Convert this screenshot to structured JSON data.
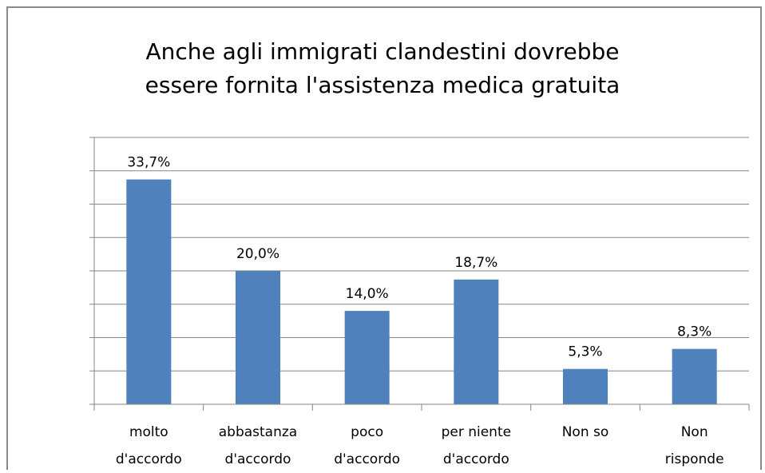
{
  "chart_data": {
    "type": "bar",
    "title": "Anche agli immigrati clandestini dovrebbe\nessere fornita l'assistenza medica gratuita",
    "categories": [
      "molto\nd'accordo",
      "abbastanza\nd'accordo",
      "poco\nd'accordo",
      "per niente\nd'accordo",
      "Non so",
      "Non\nrisponde"
    ],
    "values": [
      33.7,
      20.0,
      14.0,
      18.7,
      5.3,
      8.3
    ],
    "value_labels": [
      "33,7%",
      "20,0%",
      "14,0%",
      "18,7%",
      "5,3%",
      "8,3%"
    ],
    "color": "#4f81bd",
    "ylim": [
      0,
      40
    ],
    "yticks": [
      0,
      5,
      10,
      15,
      20,
      25,
      30,
      35,
      40
    ],
    "grid": true
  }
}
